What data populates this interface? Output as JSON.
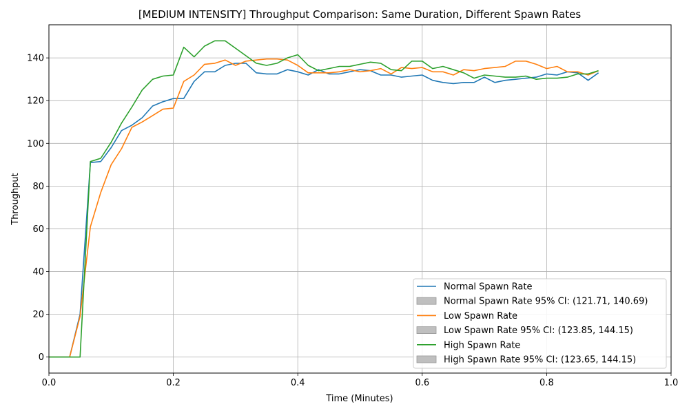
{
  "chart_data": {
    "type": "line",
    "title": "[MEDIUM INTENSITY] Throughput Comparison: Same Duration, Different Spawn Rates",
    "xlabel": "Time (Minutes)",
    "ylabel": "Throughput",
    "xlim": [
      0.0,
      1.0
    ],
    "ylim": [
      -7.5,
      155.5
    ],
    "xticks": [
      0.0,
      0.2,
      0.4,
      0.6,
      0.8,
      1.0
    ],
    "xtick_labels": [
      "0.0",
      "0.2",
      "0.4",
      "0.6",
      "0.8",
      "1.0"
    ],
    "yticks": [
      0,
      20,
      40,
      60,
      80,
      100,
      120,
      140
    ],
    "ytick_labels": [
      "0",
      "20",
      "40",
      "60",
      "80",
      "100",
      "120",
      "140"
    ],
    "grid": true,
    "legend_position": "lower-right",
    "series": [
      {
        "name": "Normal Spawn Rate",
        "color": "#1f77b4",
        "x": [
          0.0,
          0.0167,
          0.0333,
          0.05,
          0.0667,
          0.0833,
          0.1,
          0.1167,
          0.1333,
          0.15,
          0.1667,
          0.1833,
          0.2,
          0.2167,
          0.2333,
          0.25,
          0.2667,
          0.2833,
          0.3,
          0.3167,
          0.3333,
          0.35,
          0.3667,
          0.3833,
          0.4,
          0.4167,
          0.4333,
          0.45,
          0.4667,
          0.4833,
          0.5,
          0.5167,
          0.5333,
          0.55,
          0.5667,
          0.5833,
          0.6,
          0.6167,
          0.6333,
          0.65,
          0.6667,
          0.6833,
          0.7,
          0.7167,
          0.7333,
          0.75,
          0.7667,
          0.7833,
          0.8,
          0.8167,
          0.8333,
          0.85,
          0.8667,
          0.8833
        ],
        "values": [
          0,
          0,
          0,
          20,
          91,
          91.5,
          98,
          106,
          108.5,
          112,
          117.5,
          119.5,
          121,
          121,
          129,
          133.5,
          133.5,
          136.5,
          137.5,
          137.5,
          133,
          132.5,
          132.5,
          134.5,
          133.5,
          132,
          134.5,
          132.5,
          132.5,
          133.5,
          134.5,
          134,
          132,
          132,
          131,
          131.5,
          132,
          129.5,
          128.5,
          128,
          128.5,
          128.5,
          131,
          128.5,
          129.5,
          130,
          130.5,
          131,
          132.5,
          132,
          133.5,
          133,
          129.5,
          133
        ]
      },
      {
        "name": "Low Spawn Rate",
        "color": "#ff7f0e",
        "x": [
          0.0,
          0.0167,
          0.0333,
          0.05,
          0.0667,
          0.0833,
          0.1,
          0.1167,
          0.1333,
          0.15,
          0.1667,
          0.1833,
          0.2,
          0.2167,
          0.2333,
          0.25,
          0.2667,
          0.2833,
          0.3,
          0.3167,
          0.3333,
          0.35,
          0.3667,
          0.3833,
          0.4,
          0.4167,
          0.4333,
          0.45,
          0.4667,
          0.4833,
          0.5,
          0.5167,
          0.5333,
          0.55,
          0.5667,
          0.5833,
          0.6,
          0.6167,
          0.6333,
          0.65,
          0.6667,
          0.6833,
          0.7,
          0.7167,
          0.7333,
          0.75,
          0.7667,
          0.7833,
          0.8,
          0.8167,
          0.8333,
          0.85,
          0.8667,
          0.8833
        ],
        "values": [
          0,
          0,
          0,
          19,
          61,
          77,
          90,
          97.5,
          107.5,
          110,
          113,
          116,
          116.5,
          129,
          132,
          137,
          137.5,
          139,
          136.5,
          138.5,
          139,
          139.5,
          139.5,
          139,
          136.5,
          133,
          133,
          133,
          133.5,
          134.5,
          133.5,
          134,
          135,
          132.5,
          135.5,
          135,
          135.5,
          133.5,
          133.5,
          132,
          134.5,
          134,
          135,
          135.5,
          136,
          138.5,
          138.5,
          137,
          135,
          136,
          133.5,
          133.5,
          132,
          134
        ]
      },
      {
        "name": "High Spawn Rate",
        "color": "#2ca02c",
        "x": [
          0.0,
          0.0167,
          0.0333,
          0.05,
          0.0667,
          0.0833,
          0.1,
          0.1167,
          0.1333,
          0.15,
          0.1667,
          0.1833,
          0.2,
          0.2167,
          0.2333,
          0.25,
          0.2667,
          0.2833,
          0.3,
          0.3167,
          0.3333,
          0.35,
          0.3667,
          0.3833,
          0.4,
          0.4167,
          0.4333,
          0.45,
          0.4667,
          0.4833,
          0.5,
          0.5167,
          0.5333,
          0.55,
          0.5667,
          0.5833,
          0.6,
          0.6167,
          0.6333,
          0.65,
          0.6667,
          0.6833,
          0.7,
          0.7167,
          0.7333,
          0.75,
          0.7667,
          0.7833,
          0.8,
          0.8167,
          0.8333,
          0.85,
          0.8667,
          0.8833
        ],
        "values": [
          0,
          0,
          0,
          0,
          91.5,
          93,
          100.5,
          109.5,
          117,
          125,
          130,
          131.5,
          132,
          145,
          140.5,
          145.5,
          148,
          148,
          144.5,
          141,
          137.5,
          136.5,
          137.5,
          140,
          141.5,
          136.5,
          134,
          135,
          136,
          136,
          137,
          138,
          137.5,
          134.5,
          134,
          138.5,
          138.5,
          135,
          136,
          134.5,
          133,
          130.5,
          132,
          131.5,
          131,
          131,
          131.5,
          130,
          130.5,
          130.5,
          131,
          132.5,
          132.5,
          134
        ]
      }
    ],
    "legend_entries": [
      {
        "label": "Normal Spawn Rate",
        "kind": "line",
        "color": "#1f77b4"
      },
      {
        "label": "Normal Spawn Rate 95% CI: (121.71, 140.69)",
        "kind": "patch",
        "color": "#bfbfbf"
      },
      {
        "label": "Low Spawn Rate",
        "kind": "line",
        "color": "#ff7f0e"
      },
      {
        "label": "Low Spawn Rate 95% CI: (123.85, 144.15)",
        "kind": "patch",
        "color": "#bfbfbf"
      },
      {
        "label": "High Spawn Rate",
        "kind": "line",
        "color": "#2ca02c"
      },
      {
        "label": "High Spawn Rate 95% CI: (123.65, 144.15)",
        "kind": "patch",
        "color": "#bfbfbf"
      }
    ]
  }
}
